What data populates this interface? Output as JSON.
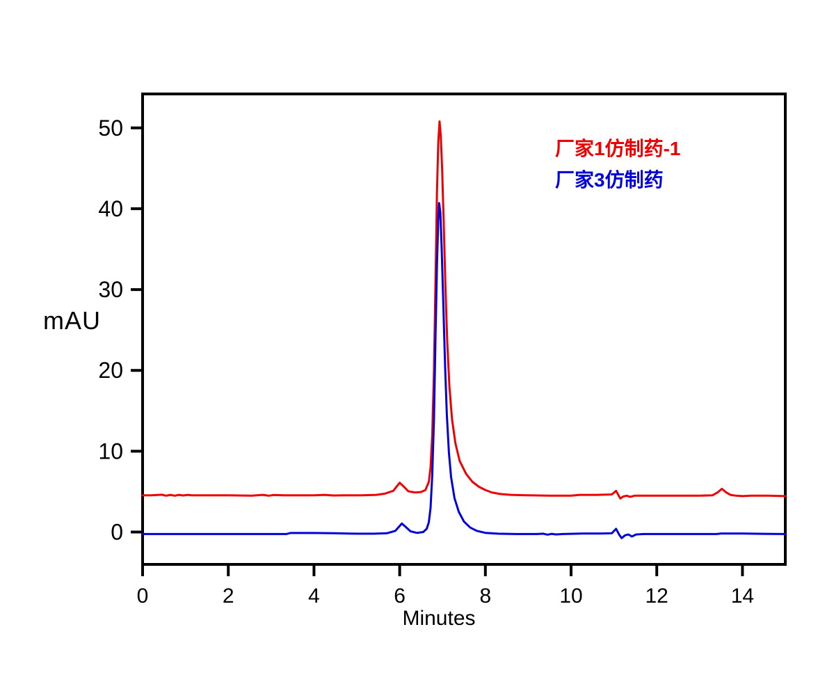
{
  "chart_data": {
    "type": "line",
    "title": "",
    "xlabel": "Minutes",
    "ylabel": "mAU",
    "xlim": [
      0,
      15
    ],
    "ylim": [
      -4,
      54.2
    ],
    "x_ticks": [
      0,
      2,
      4,
      6,
      8,
      10,
      12,
      14
    ],
    "y_ticks": [
      0,
      10,
      20,
      30,
      40,
      50
    ],
    "grid": false,
    "legend_position": "top-right",
    "axis_color": "#000000",
    "background_color": "#ffffff",
    "series": [
      {
        "name": "厂家1仿制药-1",
        "color": "#ee0000",
        "baseline_mAU": 4.5,
        "main_peak": {
          "time_min": 6.93,
          "height_mAU": 50.8
        },
        "points": [
          [
            0,
            4.55
          ],
          [
            0.2,
            4.55
          ],
          [
            0.45,
            4.62
          ],
          [
            0.55,
            4.5
          ],
          [
            0.65,
            4.6
          ],
          [
            0.75,
            4.5
          ],
          [
            0.85,
            4.6
          ],
          [
            0.95,
            4.52
          ],
          [
            1.05,
            4.6
          ],
          [
            1.15,
            4.55
          ],
          [
            1.5,
            4.55
          ],
          [
            2.0,
            4.55
          ],
          [
            2.55,
            4.5
          ],
          [
            2.8,
            4.6
          ],
          [
            2.95,
            4.5
          ],
          [
            3.05,
            4.58
          ],
          [
            3.3,
            4.55
          ],
          [
            4.0,
            4.55
          ],
          [
            4.25,
            4.6
          ],
          [
            4.45,
            4.52
          ],
          [
            4.7,
            4.55
          ],
          [
            5.1,
            4.55
          ],
          [
            5.45,
            4.6
          ],
          [
            5.65,
            4.75
          ],
          [
            5.85,
            5.1
          ],
          [
            6.0,
            6.1
          ],
          [
            6.1,
            5.6
          ],
          [
            6.2,
            5.05
          ],
          [
            6.35,
            4.9
          ],
          [
            6.5,
            4.95
          ],
          [
            6.6,
            5.2
          ],
          [
            6.68,
            6.2
          ],
          [
            6.72,
            8.0
          ],
          [
            6.76,
            12.0
          ],
          [
            6.8,
            20.0
          ],
          [
            6.84,
            32.0
          ],
          [
            6.87,
            42.0
          ],
          [
            6.9,
            48.0
          ],
          [
            6.93,
            50.8
          ],
          [
            6.96,
            49.0
          ],
          [
            6.99,
            45.0
          ],
          [
            7.03,
            38.0
          ],
          [
            7.07,
            30.0
          ],
          [
            7.11,
            23.5
          ],
          [
            7.16,
            18.0
          ],
          [
            7.22,
            14.0
          ],
          [
            7.3,
            11.0
          ],
          [
            7.4,
            8.8
          ],
          [
            7.55,
            7.2
          ],
          [
            7.7,
            6.2
          ],
          [
            7.85,
            5.6
          ],
          [
            8.0,
            5.2
          ],
          [
            8.15,
            4.9
          ],
          [
            8.35,
            4.7
          ],
          [
            8.6,
            4.6
          ],
          [
            9.0,
            4.55
          ],
          [
            9.5,
            4.5
          ],
          [
            10.0,
            4.5
          ],
          [
            10.2,
            4.6
          ],
          [
            10.6,
            4.6
          ],
          [
            10.95,
            4.65
          ],
          [
            11.05,
            5.1
          ],
          [
            11.1,
            4.6
          ],
          [
            11.15,
            4.15
          ],
          [
            11.22,
            4.4
          ],
          [
            11.3,
            4.5
          ],
          [
            11.38,
            4.35
          ],
          [
            11.48,
            4.5
          ],
          [
            11.7,
            4.5
          ],
          [
            12.0,
            4.5
          ],
          [
            12.5,
            4.5
          ],
          [
            13.0,
            4.5
          ],
          [
            13.3,
            4.55
          ],
          [
            13.42,
            4.9
          ],
          [
            13.52,
            5.35
          ],
          [
            13.62,
            4.9
          ],
          [
            13.72,
            4.6
          ],
          [
            13.85,
            4.5
          ],
          [
            14.0,
            4.45
          ],
          [
            14.2,
            4.5
          ],
          [
            14.6,
            4.5
          ],
          [
            15,
            4.45
          ]
        ]
      },
      {
        "name": "厂家3仿制药",
        "color": "#0000dd",
        "baseline_mAU": -0.25,
        "main_peak": {
          "time_min": 6.92,
          "height_mAU": 40.7
        },
        "points": [
          [
            0,
            -0.25
          ],
          [
            0.5,
            -0.25
          ],
          [
            1.0,
            -0.25
          ],
          [
            1.5,
            -0.25
          ],
          [
            2.0,
            -0.25
          ],
          [
            2.5,
            -0.25
          ],
          [
            3.0,
            -0.25
          ],
          [
            3.35,
            -0.25
          ],
          [
            3.45,
            -0.12
          ],
          [
            4.0,
            -0.12
          ],
          [
            4.5,
            -0.15
          ],
          [
            5.0,
            -0.2
          ],
          [
            5.4,
            -0.2
          ],
          [
            5.7,
            -0.15
          ],
          [
            5.9,
            0.15
          ],
          [
            6.05,
            1.05
          ],
          [
            6.15,
            0.6
          ],
          [
            6.25,
            0.1
          ],
          [
            6.4,
            -0.1
          ],
          [
            6.55,
            0.0
          ],
          [
            6.63,
            0.4
          ],
          [
            6.68,
            1.2
          ],
          [
            6.72,
            3.0
          ],
          [
            6.76,
            7.0
          ],
          [
            6.8,
            14.0
          ],
          [
            6.84,
            25.0
          ],
          [
            6.87,
            33.0
          ],
          [
            6.9,
            38.5
          ],
          [
            6.92,
            40.7
          ],
          [
            6.95,
            39.5
          ],
          [
            6.98,
            35.0
          ],
          [
            7.02,
            28.0
          ],
          [
            7.06,
            20.5
          ],
          [
            7.1,
            14.5
          ],
          [
            7.15,
            9.8
          ],
          [
            7.2,
            6.8
          ],
          [
            7.28,
            4.2
          ],
          [
            7.38,
            2.5
          ],
          [
            7.5,
            1.3
          ],
          [
            7.65,
            0.55
          ],
          [
            7.8,
            0.15
          ],
          [
            8.0,
            -0.1
          ],
          [
            8.3,
            -0.2
          ],
          [
            8.7,
            -0.25
          ],
          [
            9.2,
            -0.25
          ],
          [
            9.35,
            -0.2
          ],
          [
            9.45,
            -0.32
          ],
          [
            9.55,
            -0.22
          ],
          [
            9.65,
            -0.3
          ],
          [
            9.8,
            -0.25
          ],
          [
            10.3,
            -0.18
          ],
          [
            10.7,
            -0.18
          ],
          [
            10.95,
            -0.15
          ],
          [
            11.05,
            0.4
          ],
          [
            11.12,
            -0.3
          ],
          [
            11.18,
            -0.75
          ],
          [
            11.26,
            -0.4
          ],
          [
            11.34,
            -0.3
          ],
          [
            11.42,
            -0.55
          ],
          [
            11.52,
            -0.3
          ],
          [
            11.7,
            -0.25
          ],
          [
            12.2,
            -0.25
          ],
          [
            12.8,
            -0.25
          ],
          [
            13.4,
            -0.25
          ],
          [
            13.5,
            -0.18
          ],
          [
            14.0,
            -0.18
          ],
          [
            14.5,
            -0.22
          ],
          [
            15,
            -0.25
          ]
        ]
      }
    ]
  }
}
